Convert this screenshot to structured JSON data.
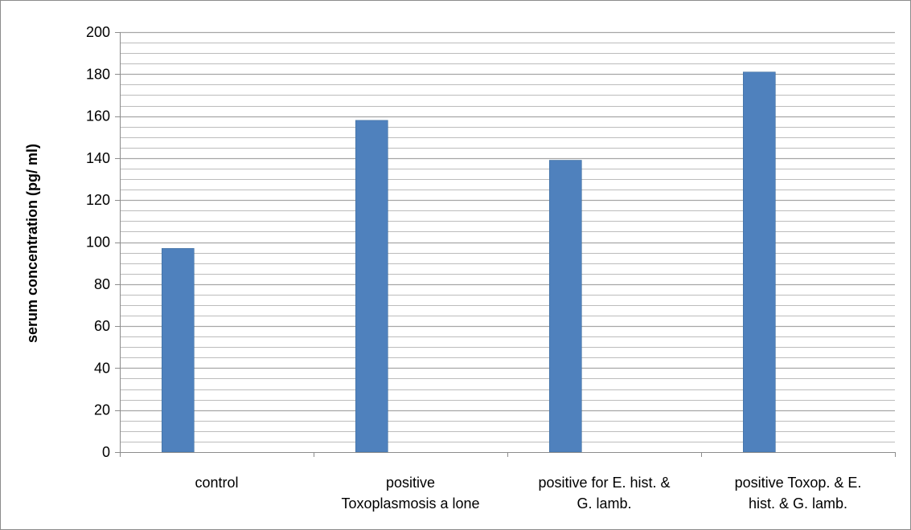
{
  "chart_data": {
    "type": "bar",
    "title": "",
    "xlabel": "",
    "ylabel": "serum concentration (pg/ ml)",
    "categories": [
      [
        "control"
      ],
      [
        "positive",
        "Toxoplasmosis a lone"
      ],
      [
        "positive for E. hist. &",
        "G. lamb."
      ],
      [
        "positive Toxop. & E.",
        "hist. & G. lamb."
      ]
    ],
    "values": [
      97,
      158,
      139,
      181
    ],
    "ylim": [
      0,
      200
    ],
    "yticks": [
      0,
      20,
      40,
      60,
      80,
      100,
      120,
      140,
      160,
      180,
      200
    ],
    "minor_step": 5,
    "grid": true,
    "legend": "none",
    "colors": {
      "bar": "#4f81bd",
      "bar_edge": "#41709f",
      "gridline": "#a6a6a6",
      "axis": "#8c8c8c"
    }
  }
}
